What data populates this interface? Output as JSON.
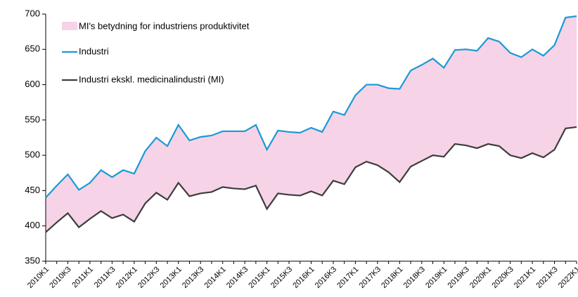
{
  "chart_data": {
    "type": "line",
    "band": {
      "name": "MI's betydning for industriens produktivitet",
      "color": "#f6d3e7"
    },
    "categories": [
      "2010K1",
      null,
      "2010K3",
      null,
      "2011K1",
      null,
      "2011K3",
      null,
      "2012K1",
      null,
      "2012K3",
      null,
      "2013K1",
      null,
      "2013K3",
      null,
      "2014K1",
      null,
      "2014K3",
      null,
      "2015K1",
      null,
      "2015K3",
      null,
      "2016K1",
      null,
      "2016K3",
      null,
      "2017K1",
      null,
      "2017K3",
      null,
      "2018K1",
      null,
      "2018K3",
      null,
      "2019K1",
      null,
      "2019K3",
      null,
      "2020K1",
      null,
      "2020K3",
      null,
      "2021K1",
      null,
      "2021K3",
      null,
      "2022K1"
    ],
    "series": [
      {
        "name": "Industri",
        "color": "#1a9ad6",
        "values": [
          440,
          457,
          473,
          451,
          461,
          479,
          469,
          479,
          474,
          506,
          525,
          513,
          543,
          521,
          526,
          528,
          534,
          534,
          534,
          543,
          508,
          535,
          533,
          532,
          539,
          533,
          562,
          557,
          585,
          600,
          600,
          595,
          594,
          620,
          628,
          637,
          624,
          649,
          650,
          648,
          666,
          661,
          645,
          639,
          650,
          641,
          656,
          695,
          697
        ]
      },
      {
        "name": "Industri ekskl. medicinalindustri (MI)",
        "color": "#3d3d3d",
        "values": [
          391,
          405,
          418,
          398,
          410,
          421,
          411,
          416,
          406,
          432,
          447,
          437,
          461,
          442,
          446,
          448,
          455,
          453,
          452,
          457,
          424,
          446,
          444,
          443,
          449,
          443,
          464,
          459,
          483,
          491,
          486,
          476,
          462,
          484,
          492,
          500,
          498,
          516,
          514,
          510,
          516,
          513,
          500,
          496,
          503,
          497,
          508,
          538,
          540
        ]
      }
    ],
    "ylim": [
      350,
      700
    ],
    "yticks": [
      350,
      400,
      450,
      500,
      550,
      600,
      650,
      700
    ]
  }
}
